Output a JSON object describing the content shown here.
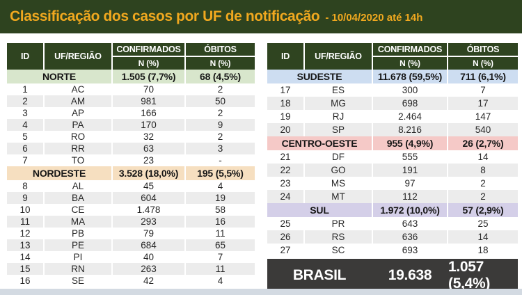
{
  "header": {
    "title": "Classificação dos casos por UF de notificação",
    "subtitle": "- 10/04/2020 até 14h",
    "bg": "#2e431f",
    "title_color": "#f0a81f"
  },
  "theme": {
    "thead_bg": "#2f4420",
    "alt_row_bg": "#ececec",
    "footer_bg": "#3b3a39",
    "bottom_strip": "#d3dae2"
  },
  "chart_data": {
    "type": "table",
    "title": "Classificação dos casos por UF de notificação - 10/04/2020 até 14h",
    "columns": {
      "id": "ID",
      "uf": "UF/REGIÃO",
      "confirmados": "CONFIRMADOS",
      "obitos": "ÓBITOS",
      "subheader": "N (%)"
    },
    "tables": [
      {
        "sections": [
          {
            "region": "NORTE",
            "region_bg": "#d8e6cc",
            "confirmados": "1.505 (7,7%)",
            "obitos": "68 (4,5%)",
            "rows": [
              {
                "id": "1",
                "uf": "AC",
                "confirmados": "70",
                "obitos": "2"
              },
              {
                "id": "2",
                "uf": "AM",
                "confirmados": "981",
                "obitos": "50"
              },
              {
                "id": "3",
                "uf": "AP",
                "confirmados": "166",
                "obitos": "2"
              },
              {
                "id": "4",
                "uf": "PA",
                "confirmados": "170",
                "obitos": "9"
              },
              {
                "id": "5",
                "uf": "RO",
                "confirmados": "32",
                "obitos": "2"
              },
              {
                "id": "6",
                "uf": "RR",
                "confirmados": "63",
                "obitos": "3"
              },
              {
                "id": "7",
                "uf": "TO",
                "confirmados": "23",
                "obitos": "-"
              }
            ]
          },
          {
            "region": "NORDESTE",
            "region_bg": "#f6dfc0",
            "confirmados": "3.528 (18,0%)",
            "obitos": "195 (5,5%)",
            "rows": [
              {
                "id": "8",
                "uf": "AL",
                "confirmados": "45",
                "obitos": "4"
              },
              {
                "id": "9",
                "uf": "BA",
                "confirmados": "604",
                "obitos": "19"
              },
              {
                "id": "10",
                "uf": "CE",
                "confirmados": "1.478",
                "obitos": "58"
              },
              {
                "id": "11",
                "uf": "MA",
                "confirmados": "293",
                "obitos": "16"
              },
              {
                "id": "12",
                "uf": "PB",
                "confirmados": "79",
                "obitos": "11"
              },
              {
                "id": "13",
                "uf": "PE",
                "confirmados": "684",
                "obitos": "65"
              },
              {
                "id": "14",
                "uf": "PI",
                "confirmados": "40",
                "obitos": "7"
              },
              {
                "id": "15",
                "uf": "RN",
                "confirmados": "263",
                "obitos": "11"
              },
              {
                "id": "16",
                "uf": "SE",
                "confirmados": "42",
                "obitos": "4"
              }
            ]
          }
        ]
      },
      {
        "sections": [
          {
            "region": "SUDESTE",
            "region_bg": "#cdddf1",
            "confirmados": "11.678 (59,5%)",
            "obitos": "711 (6,1%)",
            "rows": [
              {
                "id": "17",
                "uf": "ES",
                "confirmados": "300",
                "obitos": "7"
              },
              {
                "id": "18",
                "uf": "MG",
                "confirmados": "698",
                "obitos": "17"
              },
              {
                "id": "19",
                "uf": "RJ",
                "confirmados": "2.464",
                "obitos": "147"
              },
              {
                "id": "20",
                "uf": "SP",
                "confirmados": "8.216",
                "obitos": "540"
              }
            ]
          },
          {
            "region": "CENTRO-OESTE",
            "region_bg": "#f5c9c7",
            "confirmados": "955 (4,9%)",
            "obitos": "26 (2,7%)",
            "rows": [
              {
                "id": "21",
                "uf": "DF",
                "confirmados": "555",
                "obitos": "14"
              },
              {
                "id": "22",
                "uf": "GO",
                "confirmados": "191",
                "obitos": "8"
              },
              {
                "id": "23",
                "uf": "MS",
                "confirmados": "97",
                "obitos": "2"
              },
              {
                "id": "24",
                "uf": "MT",
                "confirmados": "112",
                "obitos": "2"
              }
            ]
          },
          {
            "region": "SUL",
            "region_bg": "#d4cfe8",
            "confirmados": "1.972 (10,0%)",
            "obitos": "57 (2,9%)",
            "rows": [
              {
                "id": "25",
                "uf": "PR",
                "confirmados": "643",
                "obitos": "25"
              },
              {
                "id": "26",
                "uf": "RS",
                "confirmados": "636",
                "obitos": "14"
              },
              {
                "id": "27",
                "uf": "SC",
                "confirmados": "693",
                "obitos": "18"
              }
            ]
          }
        ],
        "footer": {
          "label": "BRASIL",
          "confirmados": "19.638",
          "obitos": "1.057 (5,4%)"
        }
      }
    ]
  }
}
